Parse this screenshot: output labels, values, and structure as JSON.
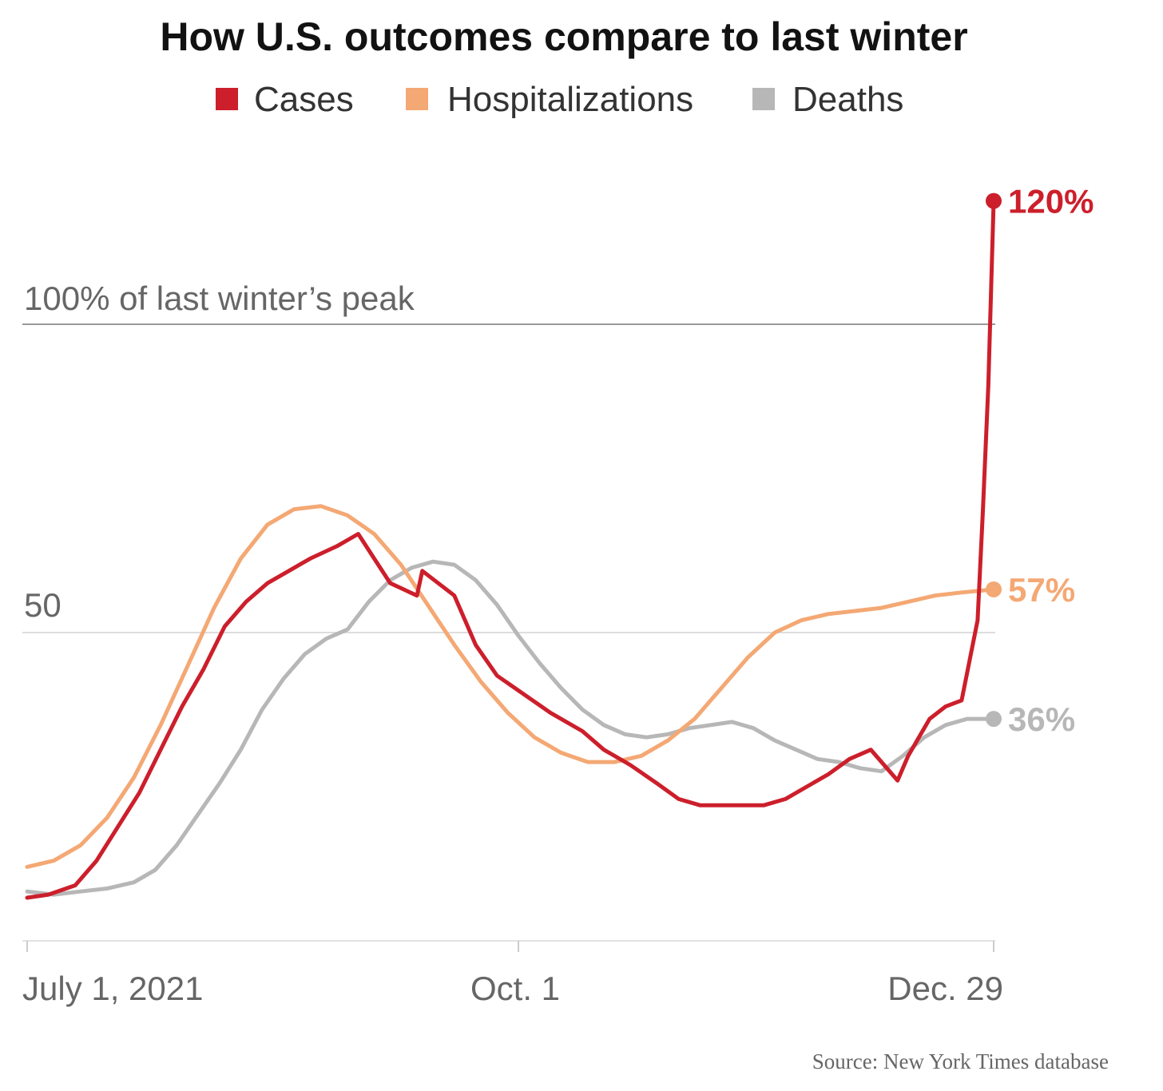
{
  "chart_data": {
    "type": "line",
    "title": "How U.S. outcomes compare to last winter",
    "source": "Source: New York Times database",
    "reference_line_label": "100% of last winter’s peak",
    "ylim": [
      0,
      130
    ],
    "x_domain": [
      0,
      181
    ],
    "x_ticks": [
      {
        "day": 0,
        "label": "July 1, 2021"
      },
      {
        "day": 92,
        "label": "Oct. 1"
      },
      {
        "day": 181,
        "label": "Dec. 29"
      }
    ],
    "y_reference_lines": [
      {
        "value": 100,
        "label": "100% of last winter’s peak"
      },
      {
        "value": 50,
        "label": "50"
      }
    ],
    "baseline_value": 0,
    "series": [
      {
        "name": "Cases",
        "color": "#cc1f2b",
        "end_label": "120%",
        "points": [
          [
            0,
            7
          ],
          [
            4,
            7.5
          ],
          [
            9,
            9
          ],
          [
            13,
            13
          ],
          [
            17,
            18.5
          ],
          [
            21,
            24
          ],
          [
            25,
            31
          ],
          [
            29,
            38
          ],
          [
            33,
            44
          ],
          [
            37,
            51
          ],
          [
            41,
            55
          ],
          [
            45,
            58
          ],
          [
            49,
            60
          ],
          [
            53,
            62
          ],
          [
            58,
            64
          ],
          [
            62,
            66
          ],
          [
            65,
            62
          ],
          [
            68,
            58
          ],
          [
            73,
            56
          ],
          [
            74,
            60
          ],
          [
            80,
            56
          ],
          [
            84,
            48
          ],
          [
            88,
            43
          ],
          [
            93,
            40
          ],
          [
            98,
            37
          ],
          [
            104,
            34
          ],
          [
            108,
            31
          ],
          [
            113,
            28.5
          ],
          [
            118,
            25.5
          ],
          [
            122,
            23
          ],
          [
            126,
            22
          ],
          [
            130,
            22
          ],
          [
            134,
            22
          ],
          [
            138,
            22
          ],
          [
            142,
            23
          ],
          [
            146,
            25
          ],
          [
            150,
            27
          ],
          [
            154,
            29.5
          ],
          [
            158,
            31
          ],
          [
            161,
            28
          ],
          [
            163,
            26
          ],
          [
            165,
            30
          ],
          [
            169,
            36
          ],
          [
            172,
            38
          ],
          [
            175,
            39
          ],
          [
            178,
            52
          ],
          [
            179,
            70
          ],
          [
            180,
            90
          ],
          [
            181,
            120
          ]
        ]
      },
      {
        "name": "Hospitalizations",
        "color": "#f4a874",
        "end_label": "57%",
        "points": [
          [
            0,
            12
          ],
          [
            5,
            13
          ],
          [
            10,
            15.5
          ],
          [
            15,
            20
          ],
          [
            20,
            26.5
          ],
          [
            25,
            35
          ],
          [
            30,
            44.5
          ],
          [
            35,
            54
          ],
          [
            40,
            62
          ],
          [
            45,
            67.5
          ],
          [
            50,
            70
          ],
          [
            55,
            70.5
          ],
          [
            60,
            69
          ],
          [
            65,
            66
          ],
          [
            70,
            61
          ],
          [
            75,
            54.5
          ],
          [
            80,
            48
          ],
          [
            85,
            42
          ],
          [
            90,
            37
          ],
          [
            95,
            33
          ],
          [
            100,
            30.5
          ],
          [
            105,
            29
          ],
          [
            110,
            29
          ],
          [
            115,
            30
          ],
          [
            120,
            32.5
          ],
          [
            125,
            36
          ],
          [
            130,
            41
          ],
          [
            135,
            46
          ],
          [
            140,
            50
          ],
          [
            145,
            52
          ],
          [
            150,
            53
          ],
          [
            155,
            53.5
          ],
          [
            160,
            54
          ],
          [
            165,
            55
          ],
          [
            170,
            56
          ],
          [
            175,
            56.5
          ],
          [
            181,
            57
          ]
        ]
      },
      {
        "name": "Deaths",
        "color": "#b7b7b7",
        "end_label": "36%",
        "points": [
          [
            0,
            8
          ],
          [
            5,
            7.5
          ],
          [
            10,
            8
          ],
          [
            15,
            8.5
          ],
          [
            20,
            9.5
          ],
          [
            24,
            11.5
          ],
          [
            28,
            15.5
          ],
          [
            32,
            20.5
          ],
          [
            36,
            25.5
          ],
          [
            40,
            31
          ],
          [
            44,
            37.5
          ],
          [
            48,
            42.5
          ],
          [
            52,
            46.5
          ],
          [
            56,
            49
          ],
          [
            60,
            50.5
          ],
          [
            64,
            55
          ],
          [
            68,
            58.5
          ],
          [
            72,
            60.5
          ],
          [
            76,
            61.5
          ],
          [
            80,
            61
          ],
          [
            84,
            58.5
          ],
          [
            88,
            54.5
          ],
          [
            92,
            49.5
          ],
          [
            96,
            45
          ],
          [
            100,
            41
          ],
          [
            104,
            37.5
          ],
          [
            108,
            35
          ],
          [
            112,
            33.5
          ],
          [
            116,
            33
          ],
          [
            120,
            33.5
          ],
          [
            124,
            34.5
          ],
          [
            128,
            35
          ],
          [
            132,
            35.5
          ],
          [
            136,
            34.5
          ],
          [
            140,
            32.5
          ],
          [
            144,
            31
          ],
          [
            148,
            29.5
          ],
          [
            152,
            29
          ],
          [
            156,
            28
          ],
          [
            160,
            27.5
          ],
          [
            164,
            30
          ],
          [
            168,
            33
          ],
          [
            172,
            35
          ],
          [
            176,
            36
          ],
          [
            181,
            36
          ]
        ]
      }
    ]
  }
}
